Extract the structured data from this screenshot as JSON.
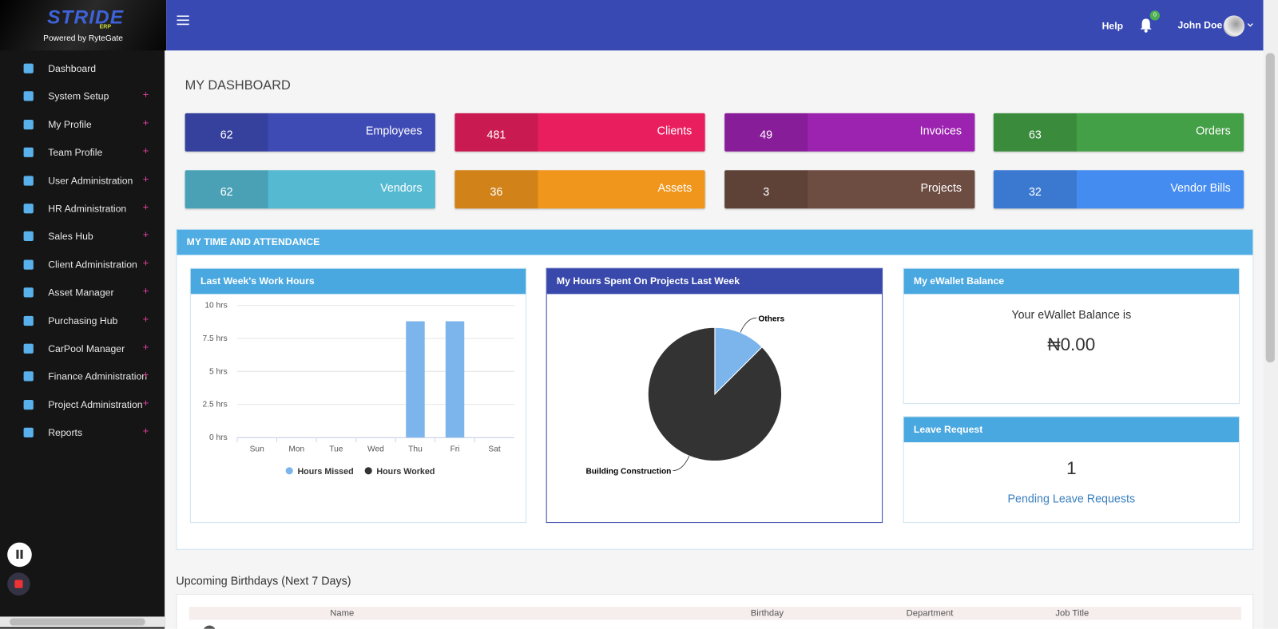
{
  "header": {
    "brand": "STRIDE",
    "brand_sub": "ERP",
    "powered": "Powered by RyteGate",
    "help": "Help",
    "notifications": 0,
    "user": "John Doe"
  },
  "sidebar": {
    "expander": "+",
    "items": [
      {
        "label": "Dashboard"
      },
      {
        "label": "System Setup",
        "expandable": true
      },
      {
        "label": "My Profile",
        "expandable": true
      },
      {
        "label": "Team Profile",
        "expandable": true
      },
      {
        "label": "User Administration",
        "expandable": true
      },
      {
        "label": "HR Administration",
        "expandable": true
      },
      {
        "label": "Sales Hub",
        "expandable": true
      },
      {
        "label": "Client Administration",
        "expandable": true
      },
      {
        "label": "Asset Manager",
        "expandable": true
      },
      {
        "label": "Purchasing Hub",
        "expandable": true
      },
      {
        "label": "CarPool Manager",
        "expandable": true
      },
      {
        "label": "Finance Administration",
        "expandable": true
      },
      {
        "label": "Project Administration",
        "expandable": true
      },
      {
        "label": "Reports",
        "expandable": true
      }
    ]
  },
  "page_title": "MY DASHBOARD",
  "tiles": [
    {
      "label": "Employees",
      "value": 62,
      "color": "#3f4bb5"
    },
    {
      "label": "Clients",
      "value": 481,
      "color": "#e91e5f"
    },
    {
      "label": "Invoices",
      "value": 49,
      "color": "#9c22b0"
    },
    {
      "label": "Orders",
      "value": 63,
      "color": "#44a047"
    },
    {
      "label": "Vendors",
      "value": 62,
      "color": "#55b9d2"
    },
    {
      "label": "Assets",
      "value": 36,
      "color": "#f0961c"
    },
    {
      "label": "Projects",
      "value": 3,
      "color": "#6d4c41"
    },
    {
      "label": "Vendor Bills",
      "value": 32,
      "color": "#448cf0"
    }
  ],
  "attendance": {
    "title": "MY TIME AND ATTENDANCE"
  },
  "chart_data": [
    {
      "type": "bar",
      "title": "Last Week's Work Hours",
      "categories": [
        "Sun",
        "Mon",
        "Tue",
        "Wed",
        "Thu",
        "Fri",
        "Sat"
      ],
      "series": [
        {
          "name": "Hours Missed",
          "color": "#7cb5ec",
          "values": [
            0,
            0,
            0,
            0,
            8.8,
            8.8,
            0
          ]
        },
        {
          "name": "Hours Worked",
          "color": "#333333",
          "values": [
            0,
            0,
            0,
            0,
            0,
            0,
            0
          ]
        }
      ],
      "ylim": [
        0,
        10
      ],
      "yticks": [
        {
          "value": 0,
          "label": "0 hrs"
        },
        {
          "value": 2.5,
          "label": "2.5 hrs"
        },
        {
          "value": 5,
          "label": "5 hrs"
        },
        {
          "value": 7.5,
          "label": "7.5 hrs"
        },
        {
          "value": 10,
          "label": "10 hrs"
        }
      ],
      "grid": true,
      "stacked": true
    },
    {
      "type": "pie",
      "title": "My Hours Spent On Projects Last Week",
      "categories": [
        "Others",
        "Building Construction"
      ],
      "values": [
        12.5,
        87.5
      ],
      "colors": [
        "#7cb5ec",
        "#333333"
      ]
    }
  ],
  "ewallet": {
    "title": "My eWallet Balance",
    "text": "Your eWallet Balance is",
    "balance": "₦0.00"
  },
  "leave": {
    "title": "Leave Request",
    "count": 1,
    "text": "Pending Leave Requests"
  },
  "birthdays": {
    "title": "Upcoming Birthdays (Next 7 Days)",
    "columns": [
      "Name",
      "Birthday",
      "Department",
      "Job Title"
    ]
  }
}
